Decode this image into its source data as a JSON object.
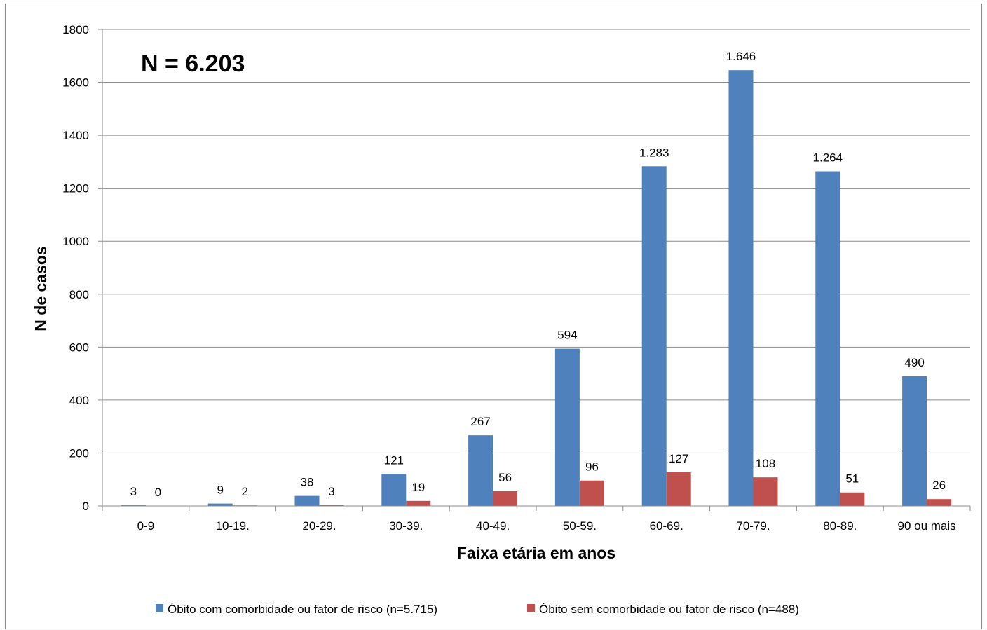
{
  "chart_data": {
    "type": "bar",
    "title": "",
    "annotation": "N = 6.203",
    "xlabel": "Faixa etária em anos",
    "ylabel": "N de casos",
    "ylim": [
      0,
      1800
    ],
    "yticks": [
      0,
      200,
      400,
      600,
      800,
      1000,
      1200,
      1400,
      1600,
      1800
    ],
    "grid": true,
    "legend_position": "bottom",
    "categories": [
      "0-9",
      "10-19.",
      "20-29.",
      "30-39.",
      "40-49.",
      "50-59.",
      "60-69.",
      "70-79.",
      "80-89.",
      "90 ou mais"
    ],
    "series": [
      {
        "name": "Óbito com comorbidade ou fator de risco (n=5.715)",
        "color": "#4f81bd",
        "values": [
          3,
          9,
          38,
          121,
          267,
          594,
          1283,
          1646,
          1264,
          490
        ],
        "labels": [
          "3",
          "9",
          "38",
          "121",
          "267",
          "594",
          "1.283",
          "1.646",
          "1.264",
          "490"
        ]
      },
      {
        "name": "Óbito sem comorbidade ou fator de risco (n=488)",
        "color": "#c0504d",
        "values": [
          0,
          2,
          3,
          19,
          56,
          96,
          127,
          108,
          51,
          26
        ],
        "labels": [
          "0",
          "2",
          "3",
          "19",
          "56",
          "96",
          "127",
          "108",
          "51",
          "26"
        ]
      }
    ]
  }
}
